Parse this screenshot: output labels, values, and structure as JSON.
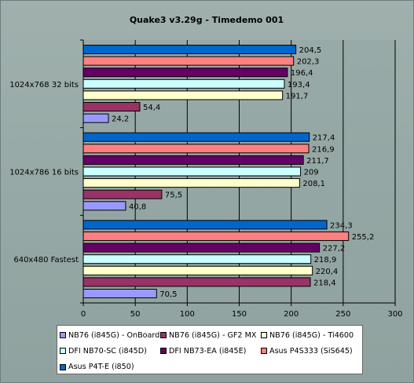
{
  "chart_data": {
    "type": "bar",
    "orientation": "horizontal",
    "title": "Quake3 v3.29g - Timedemo 001",
    "xlim": [
      0,
      300
    ],
    "xticks": [
      0,
      50,
      100,
      150,
      200,
      250,
      300
    ],
    "grid": true,
    "legend_position": "bottom",
    "categories": [
      "1024x768 32 bits",
      "1024x786 16 bits",
      "640x480 Fastest"
    ],
    "series": [
      {
        "name": "NB76 (i845G) - OnBoard",
        "color": "#9999ff",
        "values": [
          24.2,
          40.8,
          70.5
        ],
        "labels": [
          "24,2",
          "40,8",
          "70,5"
        ]
      },
      {
        "name": "NB76 (i845G) - GF2 MX",
        "color": "#993366",
        "values": [
          54.4,
          75.5,
          218.4
        ],
        "labels": [
          "54,4",
          "75,5",
          "218,4"
        ]
      },
      {
        "name": "NB76 (i845G) - Ti4600",
        "color": "#ffffcc",
        "values": [
          191.7,
          208.1,
          220.4
        ],
        "labels": [
          "191,7",
          "208,1",
          "220,4"
        ]
      },
      {
        "name": "DFI NB70-SC (i845D)",
        "color": "#ccffff",
        "values": [
          193.4,
          209,
          218.9
        ],
        "labels": [
          "193,4",
          "209",
          "218,9"
        ]
      },
      {
        "name": "DFI NB73-EA (i845E)",
        "color": "#660066",
        "values": [
          196.4,
          211.7,
          227.2
        ],
        "labels": [
          "196,4",
          "211,7",
          "227,2"
        ]
      },
      {
        "name": "Asus P4S333 (SiS645)",
        "color": "#ff8080",
        "values": [
          202.3,
          216.9,
          255.2
        ],
        "labels": [
          "202,3",
          "216,9",
          "255,2"
        ]
      },
      {
        "name": "Asus P4T-E (i850)",
        "color": "#0066cc",
        "values": [
          204.5,
          217.4,
          234.3
        ],
        "labels": [
          "204,5",
          "217,4",
          "234,3"
        ]
      }
    ]
  }
}
